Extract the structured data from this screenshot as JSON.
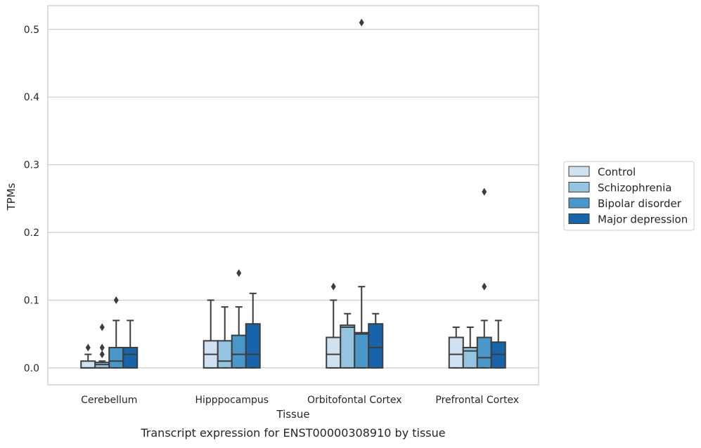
{
  "chart_data": {
    "type": "box",
    "title": "",
    "caption": "Transcript expression for ENST00000308910 by tissue",
    "xlabel": "Tissue",
    "ylabel": "TPMs",
    "ylim": [
      -0.025,
      0.535
    ],
    "yticks": [
      0.0,
      0.1,
      0.2,
      0.3,
      0.4,
      0.5
    ],
    "ytick_labels": [
      "0.0",
      "0.1",
      "0.2",
      "0.3",
      "0.4",
      "0.5"
    ],
    "categories": [
      "Cerebellum",
      "Hipppocampus",
      "Orbitofontal Cortex",
      "Prefrontal Cortex"
    ],
    "grid": true,
    "legend_position": "right",
    "series": [
      {
        "name": "Control",
        "color": "#d0e1f2",
        "boxes": [
          {
            "whisker_low": 0.0,
            "q1": 0.0,
            "median": 0.0,
            "q3": 0.01,
            "whisker_high": 0.02,
            "outliers": [
              0.03
            ]
          },
          {
            "whisker_low": 0.0,
            "q1": 0.0,
            "median": 0.02,
            "q3": 0.04,
            "whisker_high": 0.1,
            "outliers": []
          },
          {
            "whisker_low": 0.0,
            "q1": 0.0,
            "median": 0.02,
            "q3": 0.045,
            "whisker_high": 0.1,
            "outliers": [
              0.12
            ]
          },
          {
            "whisker_low": 0.0,
            "q1": 0.0,
            "median": 0.02,
            "q3": 0.045,
            "whisker_high": 0.06,
            "outliers": []
          }
        ]
      },
      {
        "name": "Schizophrenia",
        "color": "#94c4df",
        "boxes": [
          {
            "whisker_low": 0.0,
            "q1": 0.0,
            "median": 0.005,
            "q3": 0.008,
            "whisker_high": 0.01,
            "outliers": [
              0.02,
              0.03,
              0.06
            ]
          },
          {
            "whisker_low": 0.0,
            "q1": 0.0,
            "median": 0.01,
            "q3": 0.04,
            "whisker_high": 0.09,
            "outliers": []
          },
          {
            "whisker_low": 0.0,
            "q1": 0.0,
            "median": 0.06,
            "q3": 0.063,
            "whisker_high": 0.08,
            "outliers": []
          },
          {
            "whisker_low": 0.0,
            "q1": 0.0,
            "median": 0.025,
            "q3": 0.03,
            "whisker_high": 0.06,
            "outliers": []
          }
        ]
      },
      {
        "name": "Bipolar disorder",
        "color": "#4a98c9",
        "boxes": [
          {
            "whisker_low": 0.0,
            "q1": 0.0,
            "median": 0.01,
            "q3": 0.03,
            "whisker_high": 0.07,
            "outliers": [
              0.1
            ]
          },
          {
            "whisker_low": 0.0,
            "q1": 0.0,
            "median": 0.02,
            "q3": 0.048,
            "whisker_high": 0.09,
            "outliers": [
              0.14
            ]
          },
          {
            "whisker_low": 0.0,
            "q1": 0.0,
            "median": 0.05,
            "q3": 0.052,
            "whisker_high": 0.12,
            "outliers": [
              0.51
            ]
          },
          {
            "whisker_low": 0.0,
            "q1": 0.0,
            "median": 0.015,
            "q3": 0.045,
            "whisker_high": 0.07,
            "outliers": [
              0.12,
              0.26
            ]
          }
        ]
      },
      {
        "name": "Major depression",
        "color": "#1764ab",
        "boxes": [
          {
            "whisker_low": 0.0,
            "q1": 0.0,
            "median": 0.02,
            "q3": 0.03,
            "whisker_high": 0.07,
            "outliers": []
          },
          {
            "whisker_low": 0.0,
            "q1": 0.0,
            "median": 0.02,
            "q3": 0.065,
            "whisker_high": 0.11,
            "outliers": []
          },
          {
            "whisker_low": 0.0,
            "q1": 0.0,
            "median": 0.03,
            "q3": 0.065,
            "whisker_high": 0.08,
            "outliers": []
          },
          {
            "whisker_low": 0.0,
            "q1": 0.0,
            "median": 0.02,
            "q3": 0.038,
            "whisker_high": 0.07,
            "outliers": []
          }
        ]
      }
    ]
  }
}
